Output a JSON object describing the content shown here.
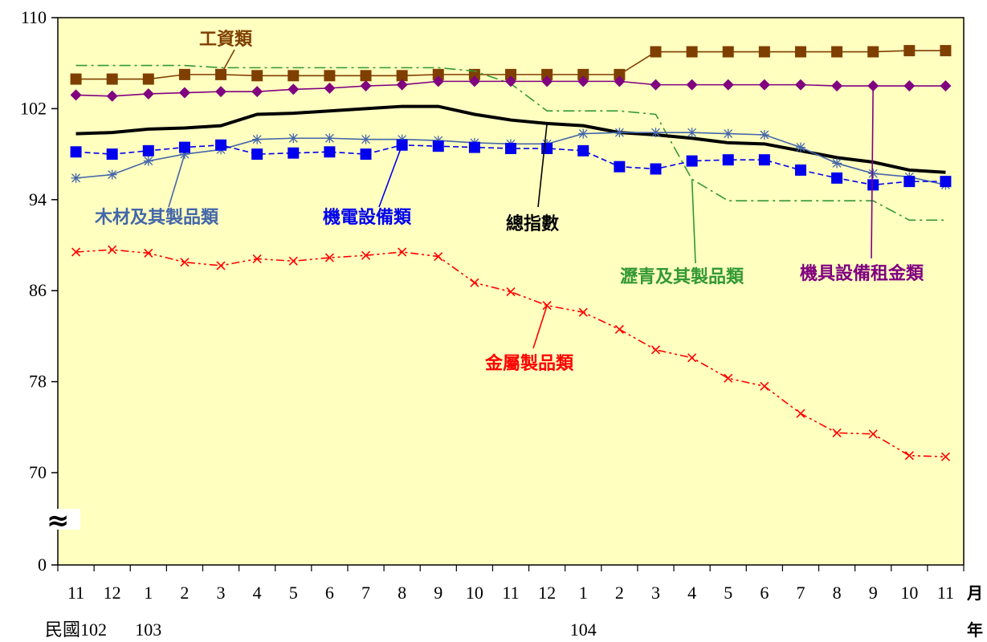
{
  "chart_data": {
    "type": "line",
    "title": "",
    "xlabel": "",
    "ylabel": "",
    "x_unit_label": "月",
    "year_unit_label": "年",
    "year_labels": [
      {
        "label": "民國102",
        "start_index": 0
      },
      {
        "label": "103",
        "start_index": 2
      },
      {
        "label": "104",
        "start_index": 14
      }
    ],
    "categories": [
      "11",
      "12",
      "1",
      "2",
      "3",
      "4",
      "5",
      "6",
      "7",
      "8",
      "9",
      "10",
      "11",
      "12",
      "1",
      "2",
      "3",
      "4",
      "5",
      "6",
      "7",
      "8",
      "9",
      "10",
      "11"
    ],
    "y_ticks": [
      "110",
      "102",
      "94",
      "86",
      "78",
      "70",
      "0"
    ],
    "ylim": [
      66,
      110
    ],
    "y_axis_break": true,
    "break_symbol": "≈",
    "legend": "inline-labels",
    "grid": false,
    "plot_background": "#ffffc0",
    "series": [
      {
        "name": "工資類",
        "color": "#7f3f00",
        "marker": "square",
        "dash": "solid",
        "label_pos": {
          "index": 4,
          "at": "above"
        },
        "values": [
          104.6,
          104.6,
          104.6,
          105.0,
          105.0,
          104.9,
          104.9,
          104.9,
          104.9,
          104.9,
          105.0,
          105.0,
          105.0,
          105.0,
          105.0,
          105.0,
          107.0,
          107.0,
          107.0,
          107.0,
          107.0,
          107.0,
          107.0,
          107.1,
          107.1
        ]
      },
      {
        "name": "瀝青及其製品類",
        "color": "#339933",
        "marker": "none",
        "dash": "dashdot",
        "values": [
          105.8,
          105.8,
          105.8,
          105.8,
          105.6,
          105.6,
          105.6,
          105.6,
          105.6,
          105.6,
          105.6,
          105.3,
          104.2,
          101.8,
          101.8,
          101.8,
          101.5,
          95.8,
          93.9,
          93.9,
          93.9,
          93.9,
          93.9,
          92.2,
          92.2
        ]
      },
      {
        "name": "機具設備租金類",
        "color": "#800080",
        "marker": "diamond",
        "dash": "solid",
        "values": [
          103.2,
          103.1,
          103.3,
          103.4,
          103.5,
          103.5,
          103.7,
          103.8,
          104.0,
          104.1,
          104.4,
          104.4,
          104.4,
          104.4,
          104.4,
          104.4,
          104.1,
          104.1,
          104.1,
          104.1,
          104.1,
          104.0,
          104.0,
          104.0,
          104.0
        ]
      },
      {
        "name": "總指數",
        "color": "#000000",
        "marker": "none",
        "dash": "solid",
        "bold": true,
        "values": [
          99.8,
          99.9,
          100.2,
          100.3,
          100.5,
          101.5,
          101.6,
          101.8,
          102.0,
          102.2,
          102.2,
          101.5,
          101.0,
          100.7,
          100.5,
          99.9,
          99.7,
          99.4,
          99.0,
          98.9,
          98.3,
          97.7,
          97.3,
          96.6,
          96.4
        ]
      },
      {
        "name": "木材及其製品類",
        "color": "#4466aa",
        "marker": "star",
        "dash": "solid",
        "values": [
          95.9,
          96.2,
          97.4,
          98.0,
          98.4,
          99.3,
          99.4,
          99.4,
          99.3,
          99.3,
          99.2,
          99.0,
          98.9,
          98.9,
          99.8,
          99.9,
          99.9,
          99.9,
          99.8,
          99.7,
          98.6,
          97.2,
          96.3,
          96.0,
          95.3
        ]
      },
      {
        "name": "機電設備類",
        "color": "#0000ee",
        "marker": "square",
        "dash": "dashed",
        "values": [
          98.2,
          98.0,
          98.3,
          98.6,
          98.8,
          98.0,
          98.1,
          98.2,
          98.0,
          98.8,
          98.7,
          98.6,
          98.5,
          98.5,
          98.3,
          96.9,
          96.7,
          97.4,
          97.5,
          97.5,
          96.6,
          95.9,
          95.3,
          95.6,
          95.6
        ]
      },
      {
        "name": "金屬製品類",
        "color": "#ff0000",
        "marker": "x",
        "dash": "dashdotdot",
        "values": [
          89.4,
          89.6,
          89.3,
          88.5,
          88.2,
          88.8,
          88.6,
          88.9,
          89.1,
          89.4,
          89.0,
          86.7,
          85.9,
          84.7,
          84.1,
          82.6,
          80.8,
          80.1,
          78.3,
          77.6,
          75.2,
          73.5,
          73.4,
          71.5,
          71.4
        ]
      }
    ],
    "annotations": [
      {
        "text": "工資類",
        "series": "工資類",
        "index": 4
      },
      {
        "text": "木材及其製品類",
        "series": "木材及其製品類",
        "index": 3
      },
      {
        "text": "機電設備類",
        "series": "機電設備類",
        "index": 9
      },
      {
        "text": "總指數",
        "series": "總指數",
        "index": 13
      },
      {
        "text": "瀝青及其製品類",
        "series": "瀝青及其製品類",
        "index": 17
      },
      {
        "text": "機具設備租金類",
        "series": "機具設備租金類",
        "index": 22
      },
      {
        "text": "金屬製品類",
        "series": "金屬製品類",
        "index": 13
      }
    ]
  }
}
